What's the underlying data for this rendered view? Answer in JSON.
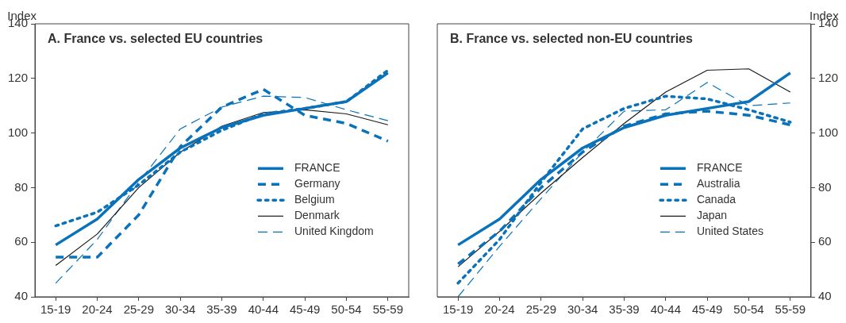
{
  "chart_data": [
    {
      "type": "line",
      "title": "A. France vs. selected EU countries",
      "ylabel": "Index",
      "categories": [
        "15-19",
        "20-24",
        "25-29",
        "30-34",
        "35-39",
        "40-44",
        "45-49",
        "50-54",
        "55-59"
      ],
      "series": [
        {
          "name": "FRANCE",
          "color": "#0a72ba",
          "line_style": "solid",
          "values": [
            59,
            68.5,
            83,
            94.5,
            102,
            106.5,
            109,
            111.5,
            122
          ]
        },
        {
          "name": "Germany",
          "color": "#0a72ba",
          "line_style": "dashed",
          "values": [
            54.5,
            54.5,
            70,
            95,
            109.5,
            116,
            106.5,
            103.5,
            97
          ]
        },
        {
          "name": "Belgium",
          "color": "#0a72ba",
          "line_style": "dotted",
          "values": [
            66,
            71,
            81,
            93,
            101,
            107,
            109,
            111.5,
            123
          ]
        },
        {
          "name": "Denmark",
          "color": "#1a1a1a",
          "line_style": "solid",
          "values": [
            51.5,
            63,
            80,
            93,
            102.5,
            107.5,
            108.5,
            107,
            103
          ]
        },
        {
          "name": "United Kingdom",
          "color": "#0a72ba",
          "line_style": "dashed",
          "values": [
            45,
            61,
            82,
            101.5,
            109.5,
            113.5,
            113,
            108.5,
            104.5
          ]
        }
      ],
      "ylim": [
        40,
        140
      ],
      "yticks": [
        40,
        60,
        80,
        100,
        120,
        140
      ],
      "grid": false,
      "legend": "right"
    },
    {
      "type": "line",
      "title": "B. France vs. selected non-EU countries",
      "y2label": "Index",
      "categories": [
        "15-19",
        "20-24",
        "25-29",
        "30-34",
        "35-39",
        "40-44",
        "45-49",
        "50-54",
        "55-59"
      ],
      "series": [
        {
          "name": "FRANCE",
          "color": "#0a72ba",
          "line_style": "solid",
          "axis": "y2",
          "values": [
            59,
            68.5,
            83,
            94.5,
            102,
            106.5,
            109,
            111.5,
            122
          ]
        },
        {
          "name": "Australia",
          "color": "#0a72ba",
          "line_style": "dashed",
          "axis": "y2",
          "values": [
            52,
            64,
            80,
            93,
            102.5,
            107,
            108,
            106.5,
            103
          ]
        },
        {
          "name": "Canada",
          "color": "#0a72ba",
          "line_style": "dotted",
          "axis": "y2",
          "values": [
            45,
            61,
            82,
            101.5,
            109,
            113.5,
            112.5,
            108.5,
            104
          ]
        },
        {
          "name": "Japan",
          "color": "#1a1a1a",
          "line_style": "solid",
          "axis": "y2",
          "values": [
            51,
            64,
            78,
            91,
            103.5,
            115,
            123,
            123.5,
            115
          ]
        },
        {
          "name": "United States",
          "color": "#0a72ba",
          "line_style": "dashed",
          "axis": "y2",
          "values": [
            40,
            58.5,
            76,
            93,
            108,
            108.5,
            118.5,
            110,
            111
          ]
        }
      ],
      "y2lim": [
        40,
        140
      ],
      "y2ticks": [
        40,
        60,
        80,
        100,
        120,
        140
      ],
      "grid": false,
      "legend": "right"
    }
  ]
}
